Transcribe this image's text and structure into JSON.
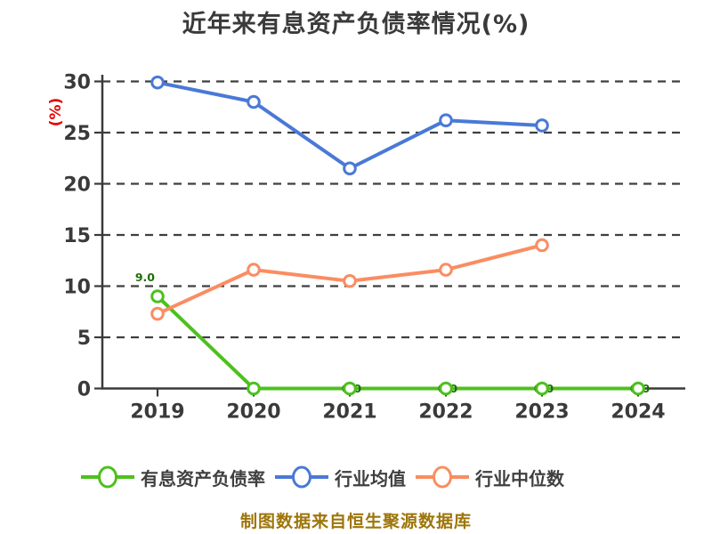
{
  "title": "近年来有息资产负债率情况(%)",
  "y_axis": {
    "label": "(%)",
    "label_color": "#e60000",
    "ticks": [
      "30",
      "25",
      "20",
      "15",
      "10",
      "5",
      "0"
    ]
  },
  "x_axis": {
    "ticks": [
      "2019",
      "2020",
      "2021",
      "2022",
      "2023",
      "2024"
    ]
  },
  "chart_data": {
    "type": "line",
    "title": "近年来有息资产负债率情况(%)",
    "ylabel": "(%)",
    "ylim": [
      0,
      30
    ],
    "y_ticks": [
      30,
      25,
      20,
      15,
      10,
      5,
      0
    ],
    "categories": [
      "2019",
      "2020",
      "2021",
      "2022",
      "2023",
      "2024"
    ],
    "grid": "horizontal dashed",
    "legend_position": "bottom",
    "series": [
      {
        "name": "有息资产负债率",
        "color": "#4ec01e",
        "marker": "circle-white-fill",
        "values": [
          9.0,
          0.0,
          0.0,
          0.0,
          0.0,
          0.0
        ],
        "point_labels": [
          "9.0",
          "",
          "0.0",
          "0.0",
          "0.0",
          "0.0"
        ],
        "label_color": "#1c6d00"
      },
      {
        "name": "行业均值",
        "color": "#4a79d6",
        "marker": "circle-white-fill",
        "values": [
          29.9,
          28.0,
          21.5,
          26.2,
          25.7,
          null
        ]
      },
      {
        "name": "行业中位数",
        "color": "#fa8d62",
        "marker": "circle-white-fill",
        "values": [
          7.3,
          11.6,
          10.5,
          11.6,
          14.0,
          null
        ]
      }
    ]
  },
  "legend": {
    "items": [
      {
        "label": "有息资产负债率",
        "color": "#4ec01e"
      },
      {
        "label": "行业均值",
        "color": "#4a79d6"
      },
      {
        "label": "行业中位数",
        "color": "#fa8d62"
      }
    ]
  },
  "caption": {
    "text": "制图数据来自恒生聚源数据库",
    "color": "#9e7509"
  },
  "colors": {
    "text": "#3a3a3a",
    "grid": "#3f3f3f",
    "background": "#ffffff"
  }
}
